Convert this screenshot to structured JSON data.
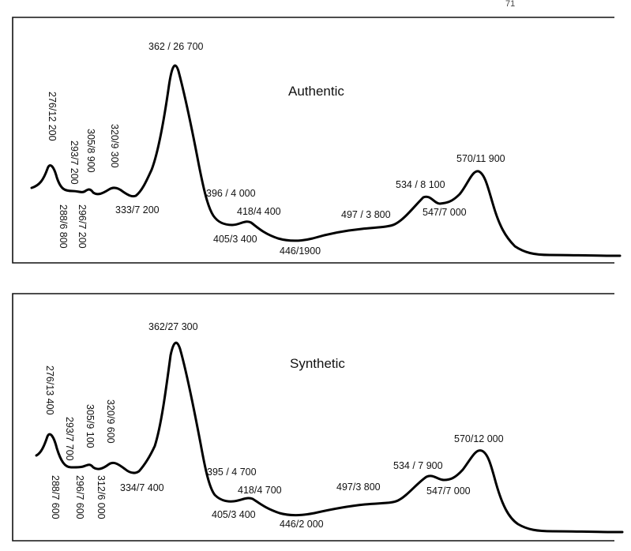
{
  "page_mark": "71",
  "chart_data": [
    {
      "type": "line",
      "title": "Authentic",
      "xlabel": "",
      "ylabel": "",
      "grid": false,
      "x_unit": "nm",
      "peaks": [
        {
          "wavelength": 276,
          "epsilon": 12200,
          "label": "276/12 200"
        },
        {
          "wavelength": 288,
          "epsilon": 6800,
          "label": "288/6 800"
        },
        {
          "wavelength": 293,
          "epsilon": 7200,
          "label": "293/7 200"
        },
        {
          "wavelength": 296,
          "epsilon": 7200,
          "label": "296/7 200"
        },
        {
          "wavelength": 305,
          "epsilon": 8900,
          "label": "305/8 900"
        },
        {
          "wavelength": 320,
          "epsilon": 9300,
          "label": "320/9 300"
        },
        {
          "wavelength": 333,
          "epsilon": 7200,
          "label": "333/7 200"
        },
        {
          "wavelength": 362,
          "epsilon": 26700,
          "label": "362 / 26 700"
        },
        {
          "wavelength": 396,
          "epsilon": 4000,
          "label": "396 / 4 000"
        },
        {
          "wavelength": 405,
          "epsilon": 3400,
          "label": "405/3 400"
        },
        {
          "wavelength": 418,
          "epsilon": 4400,
          "label": "418/4 400"
        },
        {
          "wavelength": 446,
          "epsilon": 1900,
          "label": "446/1900"
        },
        {
          "wavelength": 497,
          "epsilon": 3800,
          "label": "497 / 3 800"
        },
        {
          "wavelength": 534,
          "epsilon": 8100,
          "label": "534 / 8 100"
        },
        {
          "wavelength": 547,
          "epsilon": 7000,
          "label": "547/7 000"
        },
        {
          "wavelength": 570,
          "epsilon": 11900,
          "label": "570/11 900"
        }
      ]
    },
    {
      "type": "line",
      "title": "Synthetic",
      "xlabel": "",
      "ylabel": "",
      "grid": false,
      "x_unit": "nm",
      "peaks": [
        {
          "wavelength": 276,
          "epsilon": 13400,
          "label": "276/13 400"
        },
        {
          "wavelength": 288,
          "epsilon": 7600,
          "label": "288/7 600"
        },
        {
          "wavelength": 293,
          "epsilon": 7700,
          "label": "293/7 700"
        },
        {
          "wavelength": 296,
          "epsilon": 7600,
          "label": "296/7 600"
        },
        {
          "wavelength": 305,
          "epsilon": 9100,
          "label": "305/9 100"
        },
        {
          "wavelength": 312,
          "epsilon": 6000,
          "label": "312/6 000"
        },
        {
          "wavelength": 320,
          "epsilon": 9600,
          "label": "320/9 600"
        },
        {
          "wavelength": 334,
          "epsilon": 7400,
          "label": "334/7 400"
        },
        {
          "wavelength": 362,
          "epsilon": 27300,
          "label": "362/27 300"
        },
        {
          "wavelength": 395,
          "epsilon": 4700,
          "label": "395 / 4 700"
        },
        {
          "wavelength": 405,
          "epsilon": 3400,
          "label": "405/3 400"
        },
        {
          "wavelength": 418,
          "epsilon": 4700,
          "label": "418/4 700"
        },
        {
          "wavelength": 446,
          "epsilon": 2000,
          "label": "446/2 000"
        },
        {
          "wavelength": 497,
          "epsilon": 3800,
          "label": "497/3 800"
        },
        {
          "wavelength": 534,
          "epsilon": 7900,
          "label": "534 / 7 900"
        },
        {
          "wavelength": 547,
          "epsilon": 7000,
          "label": "547/7 000"
        },
        {
          "wavelength": 570,
          "epsilon": 12000,
          "label": "570/12 000"
        }
      ]
    }
  ]
}
